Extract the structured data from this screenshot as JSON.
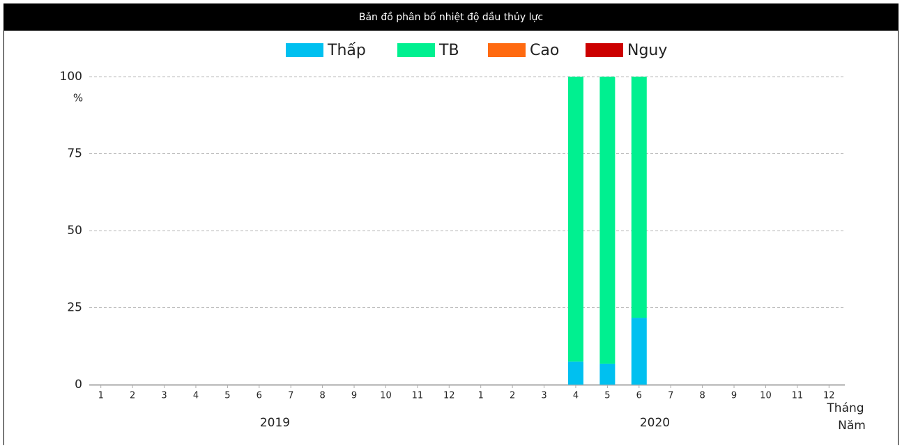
{
  "chart_data": {
    "type": "stacked_bar",
    "title": "Bản đồ phân bố nhiệt độ dầu thủy lực",
    "categories": [
      "1",
      "2",
      "3",
      "4",
      "5",
      "6",
      "7",
      "8",
      "9",
      "10",
      "11",
      "12",
      "1",
      "2",
      "3",
      "4",
      "5",
      "6",
      "7",
      "8",
      "9",
      "10",
      "11",
      "12"
    ],
    "years": [
      "2019",
      "2020"
    ],
    "series": [
      {
        "name": "Thấp",
        "color": "#00c0f0",
        "values": [
          0,
          0,
          0,
          0,
          0,
          0,
          0,
          0,
          0,
          0,
          0,
          0,
          0,
          0,
          0,
          7.5,
          6.8,
          21.7,
          0,
          0,
          0,
          0,
          0,
          0
        ]
      },
      {
        "name": "TB",
        "color": "#00f090",
        "values": [
          0,
          0,
          0,
          0,
          0,
          0,
          0,
          0,
          0,
          0,
          0,
          0,
          0,
          0,
          0,
          92.5,
          93.2,
          78.3,
          0,
          0,
          0,
          0,
          0,
          0
        ]
      },
      {
        "name": "Cao",
        "color": "#ff6a10",
        "values": [
          0,
          0,
          0,
          0,
          0,
          0,
          0,
          0,
          0,
          0,
          0,
          0,
          0,
          0,
          0,
          0,
          0,
          0,
          0,
          0,
          0,
          0,
          0,
          0
        ]
      },
      {
        "name": "Nguy",
        "color": "#cc0000",
        "values": [
          0,
          0,
          0,
          0,
          0,
          0,
          0,
          0,
          0,
          0,
          0,
          0,
          0,
          0,
          0,
          0,
          0,
          0,
          0,
          0,
          0,
          0,
          0,
          0
        ]
      }
    ],
    "y_label": "%",
    "x_label": "Tháng",
    "x_group_label": "Năm",
    "ylim": [
      0,
      100
    ],
    "yticks": [
      0,
      25,
      50,
      75,
      100
    ],
    "grid": true,
    "legend": "top"
  }
}
